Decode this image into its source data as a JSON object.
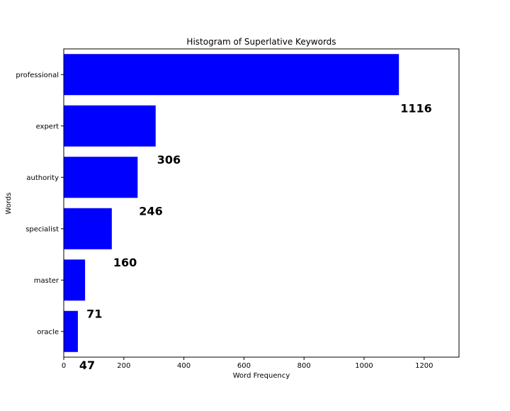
{
  "chart_data": {
    "type": "bar",
    "orientation": "horizontal",
    "title": "Histogram of Superlative Keywords",
    "xlabel": "Word Frequency",
    "ylabel": "Words",
    "categories": [
      "professional",
      "expert",
      "authority",
      "specialist",
      "master",
      "oracle"
    ],
    "values": [
      1116,
      306,
      246,
      160,
      71,
      47
    ],
    "xlim": [
      0,
      1316
    ],
    "xticks": [
      0,
      200,
      400,
      600,
      800,
      1000,
      1200
    ],
    "grid": false,
    "bar_color": "#0000ff",
    "value_labels": [
      "1116",
      "306",
      "246",
      "160",
      "71",
      "47"
    ]
  }
}
